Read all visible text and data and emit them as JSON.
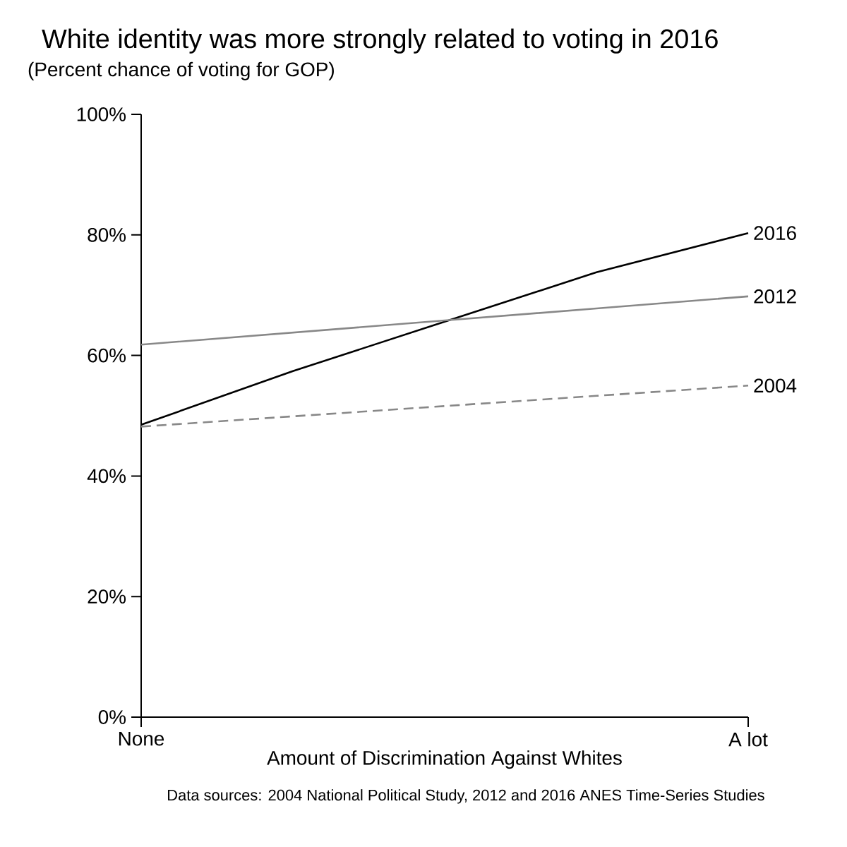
{
  "chart_data": {
    "type": "line",
    "title": "White identity was more strongly related to voting in 2016",
    "subtitle": "(Percent chance of voting for GOP)",
    "xlabel": "Amount of Discrimination Against Whites",
    "annotations": [
      "Data sources: 2004 National Political Study, 2012 and 2016 ANES Time-Series Studies"
    ],
    "categories": [
      "None",
      null,
      null,
      null,
      "A lot"
    ],
    "ylim": [
      0,
      100
    ],
    "yticks": [
      {
        "value": 0,
        "label": "0%"
      },
      {
        "value": 20,
        "label": "20%"
      },
      {
        "value": 40,
        "label": "40%"
      },
      {
        "value": 60,
        "label": "60%"
      },
      {
        "value": 80,
        "label": "80%"
      },
      {
        "value": 100,
        "label": "100%"
      }
    ],
    "grid": false,
    "legend": false,
    "marker": "none",
    "series": [
      {
        "name": "2016",
        "color": "#000000",
        "line_style": "solid",
        "values": [
          48.5,
          57.4,
          65.6,
          73.8,
          80.3
        ]
      },
      {
        "name": "2012",
        "color": "#888888",
        "line_style": "solid",
        "values": [
          61.8,
          63.8,
          65.8,
          67.8,
          69.8
        ]
      },
      {
        "name": "2004",
        "color": "#888888",
        "line_style": "dashed",
        "values": [
          48.2,
          49.9,
          51.6,
          53.3,
          55.0
        ]
      }
    ]
  }
}
